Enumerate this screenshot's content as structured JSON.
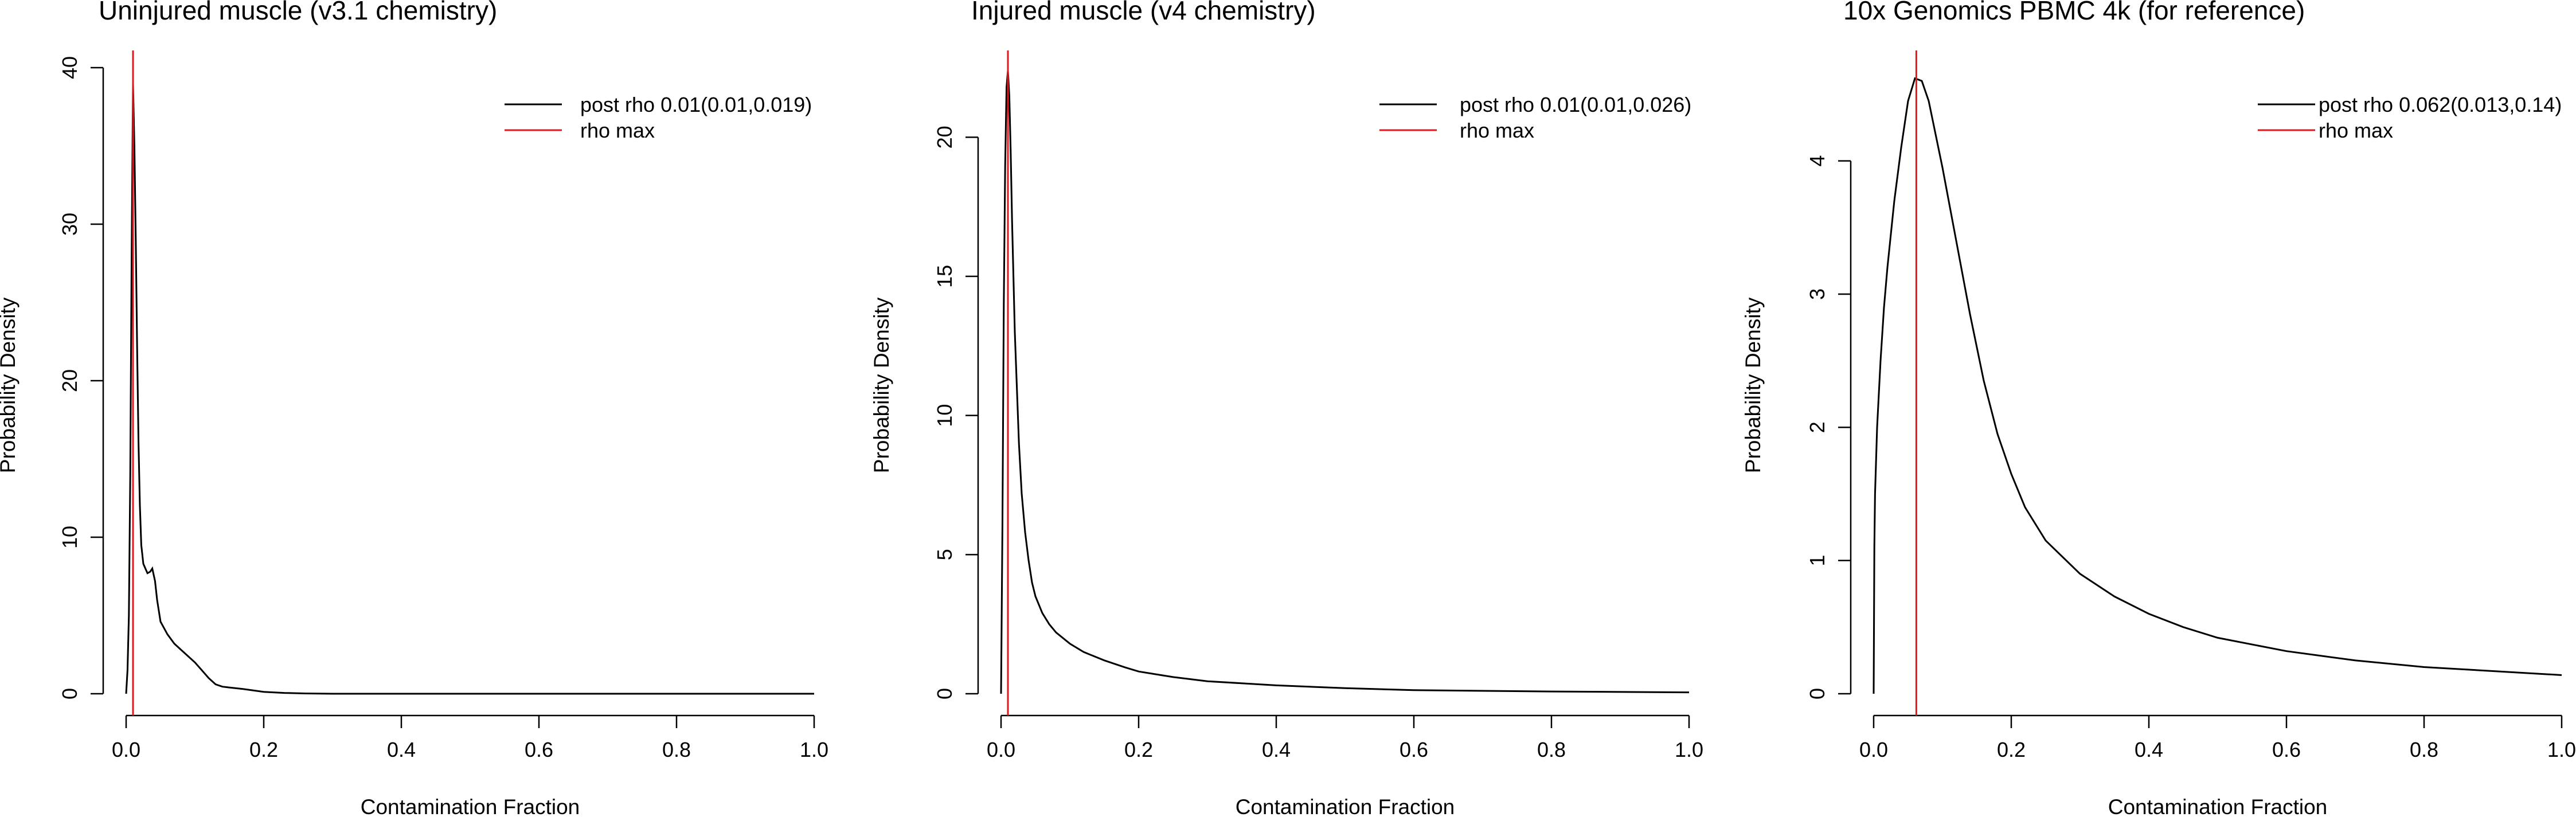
{
  "figure": {
    "colors": {
      "posterior": "#000000",
      "rho_max": "#e0191f"
    }
  },
  "chart_data": [
    {
      "type": "line",
      "title": "Uninjured muscle (v3.1 chemistry)",
      "xlabel": "Contamination Fraction",
      "ylabel": "Probability Density",
      "xlim": [
        0,
        1
      ],
      "ylim": [
        0,
        40
      ],
      "xticks": [
        0.0,
        0.2,
        0.4,
        0.6,
        0.8,
        1.0
      ],
      "xtick_labels": [
        "0.0",
        "0.2",
        "0.4",
        "0.6",
        "0.8",
        "1.0"
      ],
      "yticks": [
        0,
        10,
        20,
        30,
        40
      ],
      "ytick_labels": [
        "0",
        "10",
        "20",
        "30",
        "40"
      ],
      "legend_position": "top-right",
      "series": [
        {
          "name": "post rho 0.01(0.01,0.019)",
          "color": "#000000",
          "x": [
            0.0,
            0.002,
            0.004,
            0.006,
            0.008,
            0.01,
            0.012,
            0.014,
            0.016,
            0.018,
            0.02,
            0.022,
            0.025,
            0.028,
            0.031,
            0.035,
            0.038,
            0.042,
            0.045,
            0.05,
            0.055,
            0.06,
            0.07,
            0.08,
            0.09,
            0.1,
            0.11,
            0.12,
            0.13,
            0.14,
            0.15,
            0.17,
            0.2,
            0.23,
            0.26,
            0.3,
            0.4,
            0.6,
            0.8,
            1.0
          ],
          "y": [
            0.0,
            1.5,
            5.0,
            14.0,
            28.0,
            39.0,
            35.0,
            29.0,
            22.0,
            16.0,
            12.0,
            9.5,
            8.3,
            8.0,
            7.7,
            7.8,
            8.0,
            7.2,
            6.0,
            4.6,
            4.2,
            3.8,
            3.2,
            2.8,
            2.4,
            2.0,
            1.5,
            1.0,
            0.6,
            0.45,
            0.4,
            0.3,
            0.12,
            0.05,
            0.02,
            0.0,
            0.0,
            0.0,
            0.0,
            0.0
          ]
        },
        {
          "name": "rho max",
          "color": "#e0191f",
          "vline_x": 0.01
        }
      ]
    },
    {
      "type": "line",
      "title": "Injured muscle (v4 chemistry)",
      "xlabel": "Contamination Fraction",
      "ylabel": "Probability Density",
      "xlim": [
        0,
        1
      ],
      "ylim": [
        0,
        22.5
      ],
      "xticks": [
        0.0,
        0.2,
        0.4,
        0.6,
        0.8,
        1.0
      ],
      "xtick_labels": [
        "0.0",
        "0.2",
        "0.4",
        "0.6",
        "0.8",
        "1.0"
      ],
      "yticks": [
        0,
        5,
        10,
        15,
        20
      ],
      "ytick_labels": [
        "0",
        "5",
        "10",
        "15",
        "20"
      ],
      "legend_position": "top-right",
      "series": [
        {
          "name": "post rho 0.01(0.01,0.026)",
          "color": "#000000",
          "x": [
            0.0,
            0.002,
            0.004,
            0.006,
            0.008,
            0.01,
            0.012,
            0.014,
            0.016,
            0.018,
            0.02,
            0.023,
            0.026,
            0.03,
            0.035,
            0.04,
            0.045,
            0.05,
            0.06,
            0.07,
            0.08,
            0.1,
            0.12,
            0.15,
            0.18,
            0.2,
            0.25,
            0.3,
            0.4,
            0.5,
            0.6,
            0.8,
            1.0
          ],
          "y": [
            0.0,
            6.0,
            14.0,
            19.0,
            21.8,
            22.4,
            21.5,
            19.5,
            17.0,
            15.0,
            13.0,
            11.0,
            9.0,
            7.2,
            5.8,
            4.8,
            4.0,
            3.5,
            2.9,
            2.5,
            2.2,
            1.8,
            1.5,
            1.2,
            0.95,
            0.8,
            0.6,
            0.45,
            0.3,
            0.2,
            0.13,
            0.08,
            0.05
          ]
        },
        {
          "name": "rho max",
          "color": "#e0191f",
          "vline_x": 0.01
        }
      ]
    },
    {
      "type": "line",
      "title": "10x Genomics PBMC 4k (for reference)",
      "xlabel": "Contamination Fraction",
      "ylabel": "Probability Density",
      "xlim": [
        0,
        1
      ],
      "ylim": [
        0,
        4.7
      ],
      "xticks": [
        0.0,
        0.2,
        0.4,
        0.6,
        0.8,
        1.0
      ],
      "xtick_labels": [
        "0.0",
        "0.2",
        "0.4",
        "0.6",
        "0.8",
        "1.0"
      ],
      "yticks": [
        0,
        1,
        2,
        3,
        4
      ],
      "ytick_labels": [
        "0",
        "1",
        "2",
        "3",
        "4"
      ],
      "legend_position": "top-right",
      "series": [
        {
          "name": "post rho 0.062(0.013,0.14)",
          "color": "#000000",
          "x": [
            0.0,
            0.001,
            0.002,
            0.005,
            0.01,
            0.015,
            0.02,
            0.03,
            0.04,
            0.05,
            0.06,
            0.07,
            0.08,
            0.09,
            0.1,
            0.12,
            0.14,
            0.16,
            0.18,
            0.2,
            0.22,
            0.25,
            0.3,
            0.35,
            0.4,
            0.45,
            0.5,
            0.6,
            0.7,
            0.8,
            0.9,
            1.0
          ],
          "y": [
            0.0,
            1.1,
            1.5,
            2.0,
            2.5,
            2.9,
            3.2,
            3.7,
            4.1,
            4.45,
            4.62,
            4.6,
            4.45,
            4.2,
            3.95,
            3.4,
            2.85,
            2.35,
            1.95,
            1.65,
            1.4,
            1.15,
            0.9,
            0.73,
            0.6,
            0.5,
            0.42,
            0.32,
            0.25,
            0.2,
            0.17,
            0.14
          ]
        },
        {
          "name": "rho max",
          "color": "#e0191f",
          "vline_x": 0.062
        }
      ]
    }
  ]
}
